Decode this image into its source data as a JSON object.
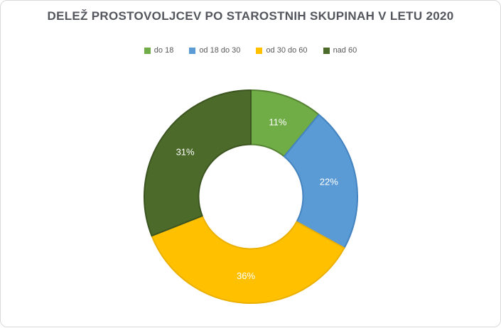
{
  "chart_data": {
    "type": "pie",
    "subtype": "donut",
    "title": "DELEŽ PROSTOVOLJCEV PO STAROSTNIH SKUPINAH V LETU 2020",
    "categories": [
      "do 18",
      "od 18 do 30",
      "od 30 do 60",
      "nad 60"
    ],
    "values": [
      11,
      22,
      36,
      31
    ],
    "data_labels": [
      "11%",
      "22%",
      "36%",
      "31%"
    ],
    "colors": [
      "#70AD47",
      "#5B9BD5",
      "#FFC000",
      "#4C6B2B"
    ],
    "edge_colors": [
      "#558233",
      "#4383BF",
      "#EAAF00",
      "#3B5420"
    ],
    "start_angle_deg": 0,
    "direction": "clockwise",
    "donut_hole_ratio": 0.49,
    "legend_position": "top",
    "label_color": "#FFFFFF",
    "title_color": "#53565D",
    "legend_text_color": "#595959",
    "frame_border_color": "#D9D9D9"
  }
}
